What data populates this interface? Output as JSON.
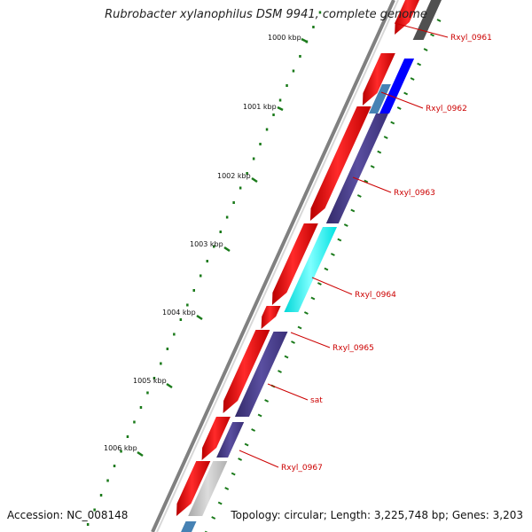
{
  "title": "Rubrobacter xylanophilus DSM 9941, complete genome",
  "footer": {
    "accession": "Accession: NC_008148",
    "topology": "Topology: circular; Length: 3,225,748 bp; Genes: 3,203"
  },
  "ticks": [
    "1000 kbp",
    "1001 kbp",
    "1002 kbp",
    "1003 kbp",
    "1004 kbp",
    "1005 kbp",
    "1006 kbp"
  ],
  "gene_labels": [
    "Rxyl_0961",
    "Rxyl_0962",
    "Rxyl_0963",
    "Rxyl_0964",
    "Rxyl_0965",
    "sat",
    "Rxyl_0967"
  ],
  "colors": {
    "forward_track": "#ff0000",
    "tick_green": "#1a7a1a",
    "label_red": "#cc0000",
    "slate_blue": "#4b3f8a",
    "steel_blue": "#4682b4",
    "blue": "#0000ff",
    "cyan": "#00ffff",
    "gray_light": "#c0c0c0",
    "gray_dark": "#505050",
    "backbone": "#808080"
  }
}
